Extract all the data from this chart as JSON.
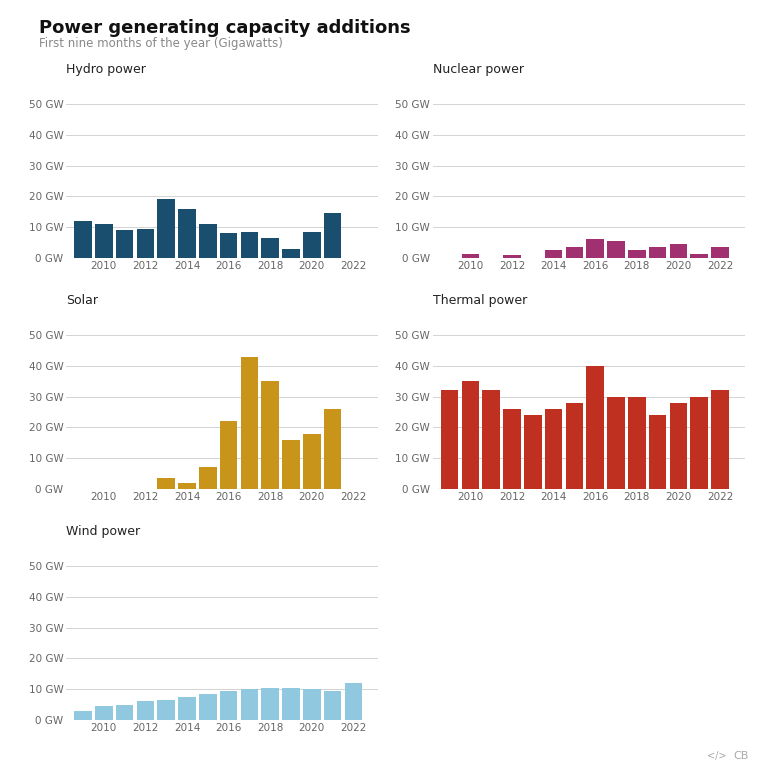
{
  "title": "Power generating capacity additions",
  "subtitle": "First nine months of the year (Gigawatts)",
  "hydro_years": [
    2009,
    2010,
    2011,
    2012,
    2013,
    2014,
    2015,
    2016,
    2017,
    2018,
    2019,
    2020,
    2021,
    2022
  ],
  "hydro_vals": [
    12.0,
    11.0,
    9.0,
    9.5,
    19.0,
    16.0,
    11.0,
    8.0,
    8.5,
    6.5,
    3.0,
    8.5,
    14.5,
    0
  ],
  "nuclear_years": [
    2009,
    2010,
    2011,
    2012,
    2013,
    2014,
    2015,
    2016,
    2017,
    2018,
    2019,
    2020,
    2021,
    2022
  ],
  "nuclear_vals": [
    0,
    1.2,
    0,
    1.0,
    0,
    2.5,
    3.5,
    6.0,
    5.5,
    2.5,
    3.5,
    4.5,
    1.2,
    3.5
  ],
  "solar_years": [
    2009,
    2010,
    2011,
    2012,
    2013,
    2014,
    2015,
    2016,
    2017,
    2018,
    2019,
    2020,
    2021,
    2022
  ],
  "solar_vals": [
    0,
    0,
    0,
    0,
    3.5,
    2.0,
    7.0,
    22.0,
    43.0,
    35.0,
    16.0,
    18.0,
    26.0,
    0
  ],
  "thermal_years": [
    2009,
    2010,
    2011,
    2012,
    2013,
    2014,
    2015,
    2016,
    2017,
    2018,
    2019,
    2020,
    2021,
    2022
  ],
  "thermal_vals": [
    32.0,
    35.0,
    32.0,
    26.0,
    24.0,
    26.0,
    28.0,
    40.0,
    30.0,
    30.0,
    24.0,
    28.0,
    30.0,
    32.0
  ],
  "wind_years": [
    2009,
    2010,
    2011,
    2012,
    2013,
    2014,
    2015,
    2016,
    2017,
    2018,
    2019,
    2020,
    2021,
    2022
  ],
  "wind_vals": [
    3.0,
    4.5,
    5.0,
    6.0,
    6.5,
    7.5,
    8.5,
    9.5,
    10.0,
    10.5,
    10.5,
    10.0,
    9.5,
    12.0
  ],
  "hydro_color": "#1a4e6e",
  "nuclear_color": "#a03070",
  "solar_color": "#c8941a",
  "thermal_color": "#c03020",
  "wind_color": "#90c8e0",
  "ylim": [
    0,
    50
  ],
  "yticks": [
    0,
    10,
    20,
    30,
    40,
    50
  ],
  "ytick_labels": [
    "0 GW",
    "10 GW",
    "20 GW",
    "30 GW",
    "40 GW",
    "50 GW"
  ],
  "xtick_positions": [
    2010,
    2012,
    2014,
    2016,
    2018,
    2020,
    2022
  ],
  "background_color": "#ffffff",
  "grid_color": "#cccccc",
  "text_color": "#666666",
  "title_color": "#111111",
  "subplot_title_color": "#222222"
}
